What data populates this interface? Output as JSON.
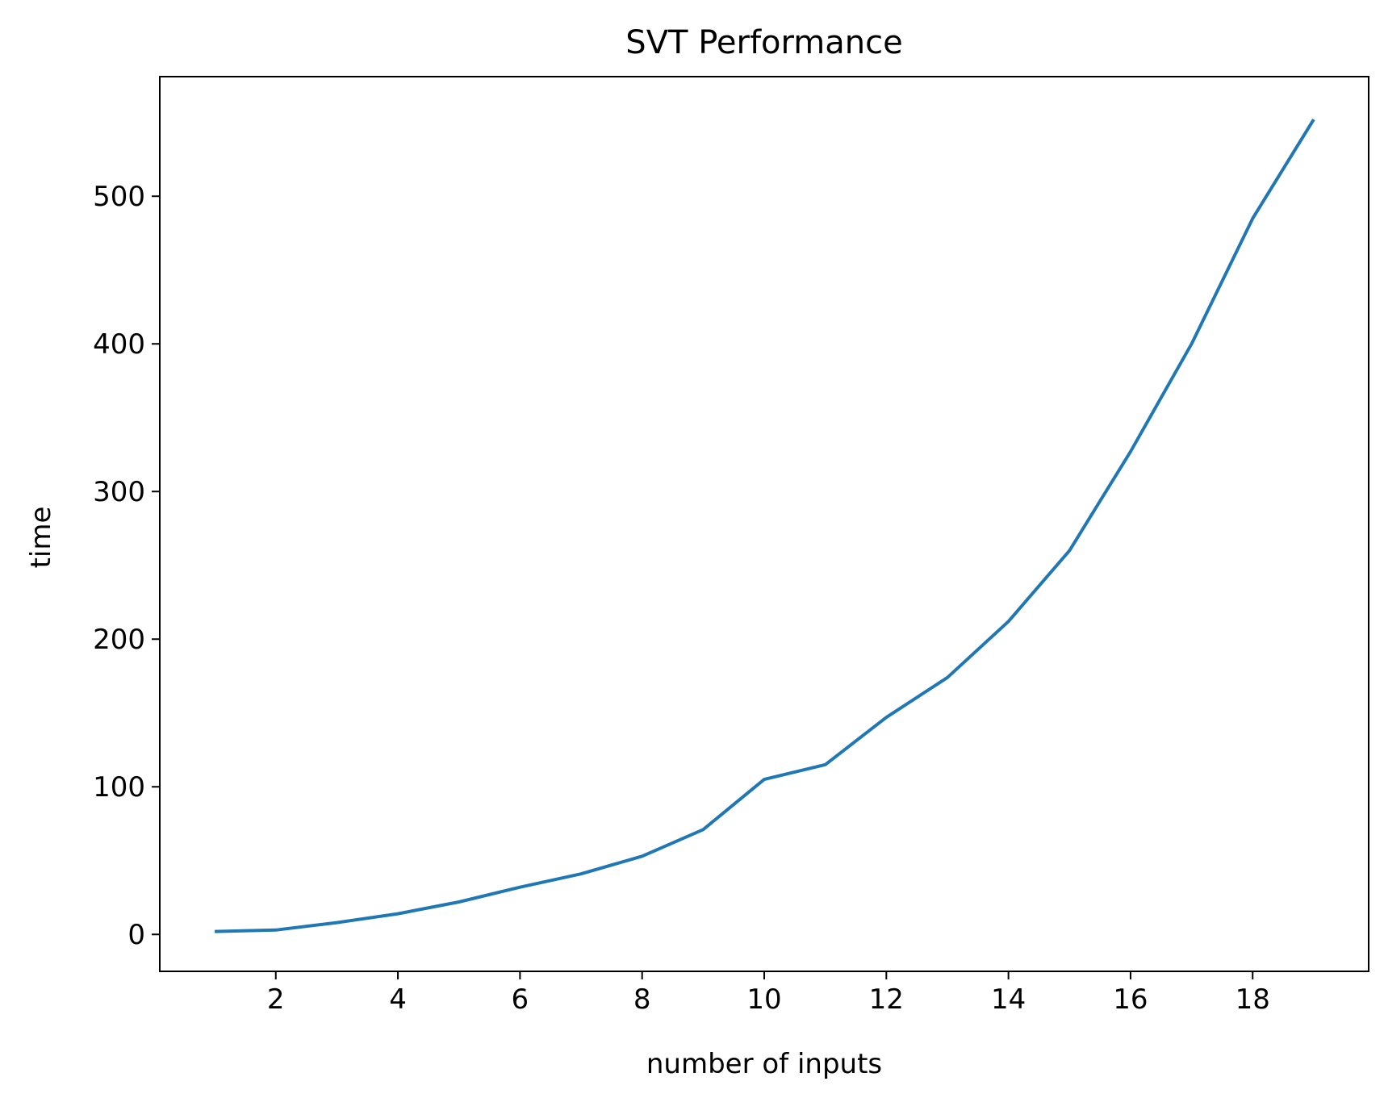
{
  "chart_data": {
    "type": "line",
    "title": "SVT Performance",
    "xlabel": "number of inputs",
    "ylabel": "time",
    "xlim": [
      0.1,
      19.9
    ],
    "ylim": [
      -25,
      581
    ],
    "xticks": [
      2,
      4,
      6,
      8,
      10,
      12,
      14,
      16,
      18
    ],
    "yticks": [
      0,
      100,
      200,
      300,
      400,
      500
    ],
    "grid": false,
    "series": [
      {
        "color": "#1f77b4",
        "x": [
          1,
          2,
          3,
          4,
          5,
          6,
          7,
          8,
          9,
          10,
          11,
          12,
          13,
          14,
          15,
          16,
          17,
          18,
          19
        ],
        "values": [
          2,
          3,
          8,
          14,
          22,
          32,
          41,
          53,
          71,
          105,
          115,
          147,
          174,
          212,
          260,
          327,
          400,
          485,
          552
        ]
      }
    ]
  }
}
